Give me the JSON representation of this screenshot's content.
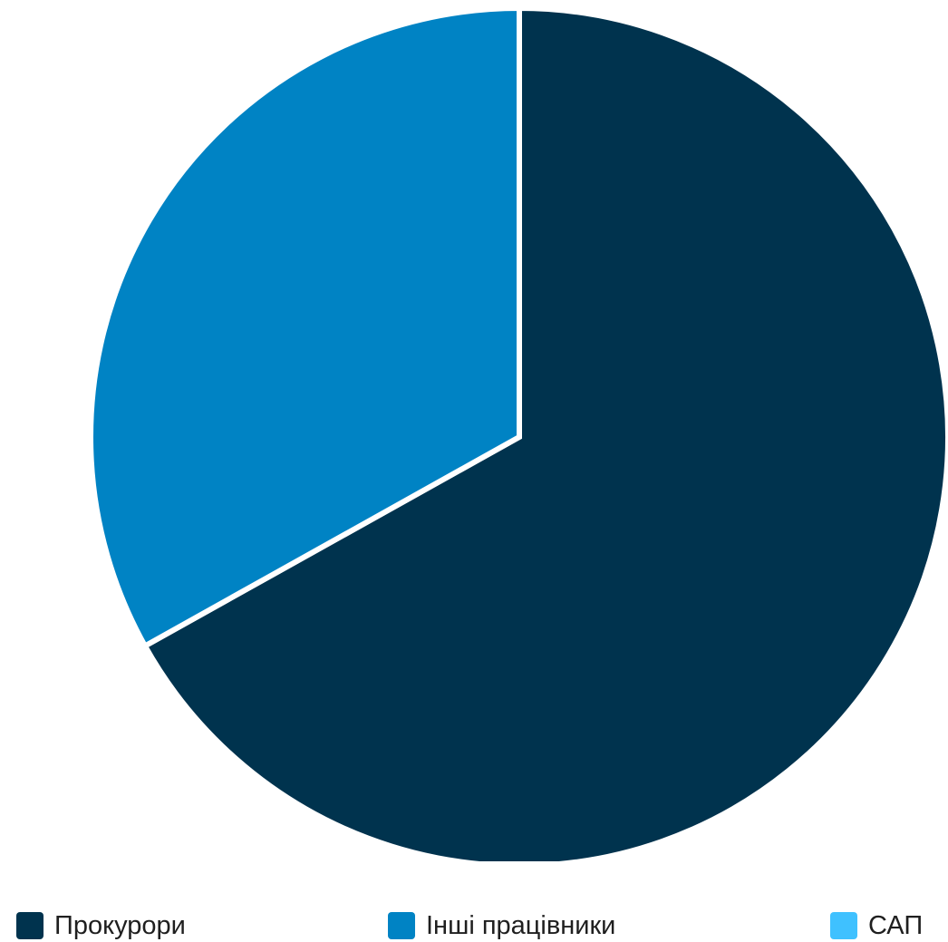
{
  "chart_data": {
    "type": "pie",
    "title": "",
    "slices": [
      {
        "name": "Прокурори",
        "value": 66.9,
        "color": "#00334e"
      },
      {
        "name": "Інші працівники",
        "value": 33.1,
        "color": "#0083c4"
      },
      {
        "name": "САП",
        "value": 0,
        "color": "#3fc1ff"
      }
    ],
    "legend": {
      "placement": "bottom",
      "items": [
        {
          "label": "Прокурори",
          "color": "#00334e"
        },
        {
          "label": "Інші працівники",
          "color": "#0083c4"
        },
        {
          "label": "САП",
          "color": "#3fc1ff"
        }
      ]
    }
  }
}
